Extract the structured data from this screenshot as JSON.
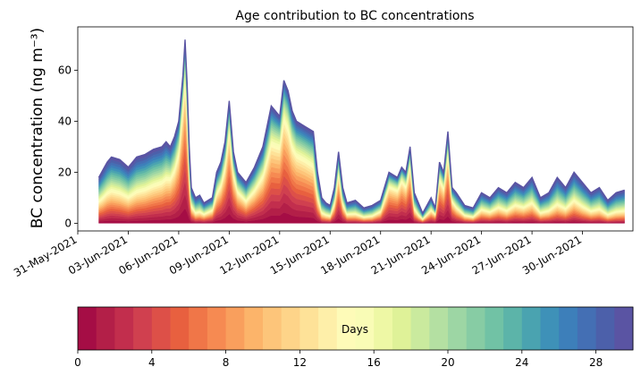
{
  "chart_data": {
    "type": "area",
    "stacked": true,
    "title": "Age contribution to BC concentrations",
    "xlabel": "",
    "ylabel": "BC concentration (ng m⁻³)",
    "ylim": [
      -3,
      77
    ],
    "xlim": [
      "2021-05-31T00:00",
      "2021-07-03T00:00"
    ],
    "x_ticks": [
      "31-May-2021",
      "03-Jun-2021",
      "06-Jun-2021",
      "09-Jun-2021",
      "12-Jun-2021",
      "15-Jun-2021",
      "18-Jun-2021",
      "21-Jun-2021",
      "24-Jun-2021",
      "27-Jun-2021",
      "30-Jun-2021"
    ],
    "x_tick_dates": [
      "2021-05-31",
      "2021-06-03",
      "2021-06-06",
      "2021-06-09",
      "2021-06-12",
      "2021-06-15",
      "2021-06-18",
      "2021-06-21",
      "2021-06-24",
      "2021-06-27",
      "2021-06-30"
    ],
    "y_ticks": [
      0,
      20,
      40,
      60
    ],
    "grid": false,
    "series_note_units": "days of aerosol age (stack layer 0 = youngest at bottom, 29 = oldest at top)",
    "x": [
      "2021-06-01T06:00",
      "2021-06-01T12:00",
      "2021-06-01T18:00",
      "2021-06-02T00:00",
      "2021-06-02T12:00",
      "2021-06-03T00:00",
      "2021-06-03T12:00",
      "2021-06-04T00:00",
      "2021-06-04T12:00",
      "2021-06-05T00:00",
      "2021-06-05T06:00",
      "2021-06-05T12:00",
      "2021-06-05T18:00",
      "2021-06-06T00:00",
      "2021-06-06T06:00",
      "2021-06-06T09:00",
      "2021-06-06T12:00",
      "2021-06-06T15:00",
      "2021-06-06T18:00",
      "2021-06-07T00:00",
      "2021-06-07T06:00",
      "2021-06-07T12:00",
      "2021-06-08T00:00",
      "2021-06-08T06:00",
      "2021-06-08T12:00",
      "2021-06-08T18:00",
      "2021-06-09T00:00",
      "2021-06-09T06:00",
      "2021-06-09T12:00",
      "2021-06-10T00:00",
      "2021-06-10T12:00",
      "2021-06-11T00:00",
      "2021-06-11T06:00",
      "2021-06-11T12:00",
      "2021-06-11T18:00",
      "2021-06-12T00:00",
      "2021-06-12T06:00",
      "2021-06-12T12:00",
      "2021-06-12T18:00",
      "2021-06-13T00:00",
      "2021-06-13T12:00",
      "2021-06-14T00:00",
      "2021-06-14T06:00",
      "2021-06-14T12:00",
      "2021-06-14T18:00",
      "2021-06-15T00:00",
      "2021-06-15T06:00",
      "2021-06-15T12:00",
      "2021-06-15T18:00",
      "2021-06-16T00:00",
      "2021-06-16T12:00",
      "2021-06-17T00:00",
      "2021-06-17T12:00",
      "2021-06-18T00:00",
      "2021-06-18T12:00",
      "2021-06-19T00:00",
      "2021-06-19T06:00",
      "2021-06-19T12:00",
      "2021-06-19T18:00",
      "2021-06-20T00:00",
      "2021-06-20T06:00",
      "2021-06-20T12:00",
      "2021-06-21T00:00",
      "2021-06-21T06:00",
      "2021-06-21T12:00",
      "2021-06-21T18:00",
      "2021-06-22T00:00",
      "2021-06-22T06:00",
      "2021-06-22T12:00",
      "2021-06-23T00:00",
      "2021-06-23T12:00",
      "2021-06-24T00:00",
      "2021-06-24T12:00",
      "2021-06-25T00:00",
      "2021-06-25T12:00",
      "2021-06-26T00:00",
      "2021-06-26T12:00",
      "2021-06-27T00:00",
      "2021-06-27T12:00",
      "2021-06-28T00:00",
      "2021-06-28T12:00",
      "2021-06-29T00:00",
      "2021-06-29T12:00",
      "2021-06-30T00:00",
      "2021-06-30T12:00",
      "2021-07-01T00:00",
      "2021-07-01T12:00",
      "2021-07-02T00:00",
      "2021-07-02T12:00"
    ],
    "total": [
      18,
      21,
      24,
      26,
      25,
      22,
      26,
      27,
      29,
      30,
      32,
      30,
      34,
      40,
      58,
      72,
      55,
      30,
      14,
      10,
      11,
      8,
      10,
      20,
      24,
      32,
      48,
      28,
      20,
      16,
      22,
      30,
      38,
      46,
      44,
      42,
      56,
      52,
      44,
      40,
      38,
      36,
      20,
      10,
      8,
      7,
      14,
      28,
      14,
      8,
      9,
      6,
      7,
      9,
      20,
      18,
      22,
      20,
      30,
      12,
      8,
      4,
      10,
      6,
      24,
      20,
      36,
      14,
      12,
      7,
      6,
      12,
      10,
      14,
      12,
      16,
      14,
      18,
      10,
      12,
      18,
      14,
      20,
      16,
      12,
      14,
      9,
      12,
      13
    ],
    "base_fraction": [
      0.4,
      0.4,
      0.42,
      0.42,
      0.4,
      0.38,
      0.4,
      0.42,
      0.45,
      0.48,
      0.5,
      0.55,
      0.6,
      0.7,
      0.85,
      0.85,
      0.8,
      0.6,
      0.4,
      0.3,
      0.3,
      0.35,
      0.45,
      0.55,
      0.6,
      0.7,
      0.8,
      0.7,
      0.6,
      0.5,
      0.55,
      0.6,
      0.65,
      0.7,
      0.72,
      0.75,
      0.78,
      0.75,
      0.7,
      0.68,
      0.66,
      0.62,
      0.45,
      0.3,
      0.3,
      0.3,
      0.5,
      0.72,
      0.5,
      0.35,
      0.3,
      0.3,
      0.3,
      0.45,
      0.75,
      0.75,
      0.8,
      0.75,
      0.8,
      0.4,
      0.3,
      0.3,
      0.45,
      0.55,
      0.75,
      0.7,
      0.8,
      0.6,
      0.45,
      0.35,
      0.3,
      0.35,
      0.35,
      0.35,
      0.3,
      0.35,
      0.35,
      0.35,
      0.3,
      0.3,
      0.3,
      0.3,
      0.35,
      0.3,
      0.28,
      0.28,
      0.25,
      0.25,
      0.25
    ],
    "colorbar": {
      "label": "Days",
      "ticks": [
        0,
        4,
        8,
        12,
        16,
        20,
        24,
        28
      ],
      "min": 0,
      "max": 30,
      "colors": [
        "#a50d45",
        "#b31f48",
        "#c22e4d",
        "#d0404f",
        "#dd5048",
        "#e8603f",
        "#f07648",
        "#f68a52",
        "#f99f5d",
        "#fcb46a",
        "#fdc57a",
        "#fed489",
        "#fee298",
        "#feefa9",
        "#fefbb8",
        "#f9fcb6",
        "#eef8a5",
        "#dff298",
        "#caea9e",
        "#b4e0a2",
        "#9dd6a4",
        "#87cca4",
        "#71c2a5",
        "#5cb4a9",
        "#4aa3b0",
        "#3e91b8",
        "#3d7fba",
        "#446fb4",
        "#4c60aa",
        "#5a54a3"
      ]
    }
  }
}
